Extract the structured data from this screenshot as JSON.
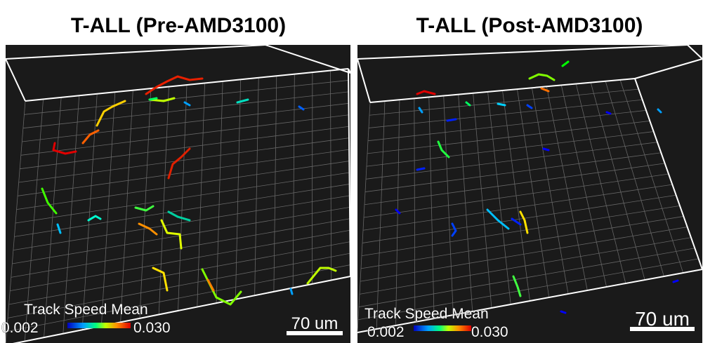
{
  "panels": [
    {
      "title": "T-ALL (Pre-AMD3100)",
      "colorbar": {
        "label": "Track Speed Mean",
        "min": "0.002",
        "max": "0.030"
      },
      "scale_bar": "70 um"
    },
    {
      "title": "T-ALL (Post-AMD3100)",
      "colorbar": {
        "label": "Track Speed Mean",
        "min": "0.002",
        "max": "0.030"
      },
      "scale_bar": "70 um"
    }
  ]
}
